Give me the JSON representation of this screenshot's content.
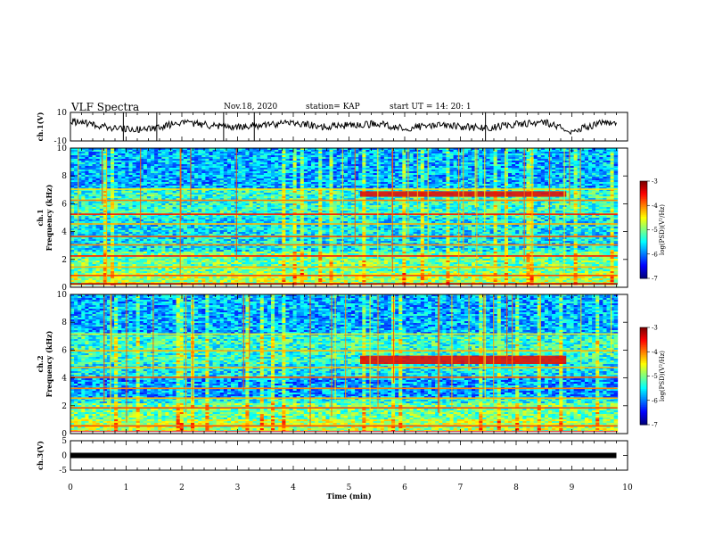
{
  "header": {
    "title": "VLF Spectra",
    "date": "Nov.18, 2020",
    "station": "station= KAP",
    "start": "start  UT =   14: 20: 1"
  },
  "chart_data": [
    {
      "type": "line",
      "panel": "ch1-waveform",
      "ylabel": "ch.1(V)",
      "ylim": [
        -10,
        10
      ],
      "ytick_labels": [
        "10",
        "-10"
      ],
      "xlim": [
        0,
        10
      ],
      "series": [
        {
          "values_description_only": false,
          "x": [
            0,
            0.5,
            1,
            1.5,
            2,
            2.5,
            3,
            3.5,
            4,
            4.5,
            5,
            5.5,
            6,
            6.5,
            7,
            7.5,
            8,
            8.5,
            9,
            9.5,
            9.8
          ],
          "y": [
            4,
            1,
            -2,
            -1,
            3,
            1,
            0,
            1,
            3,
            0,
            1,
            2,
            -1,
            1,
            0,
            -1,
            2,
            3,
            -3,
            2,
            3
          ]
        }
      ]
    },
    {
      "type": "heatmap",
      "panel": "ch1-spectrogram",
      "ylabel": "ch.1",
      "ylabel2": "Frequency (kHz)",
      "ylim": [
        0,
        10
      ],
      "ytick_labels": [
        "0",
        "2",
        "4",
        "6",
        "8",
        "10"
      ],
      "xlim": [
        0,
        10
      ],
      "colorbar": {
        "label": "log(PSD)(V²/Hz)",
        "range": [
          -7,
          -3
        ],
        "tick_labels": [
          "-3",
          "-4",
          "-5",
          "-6",
          "-7"
        ]
      }
    },
    {
      "type": "heatmap",
      "panel": "ch2-spectrogram",
      "ylabel": "ch.2",
      "ylabel2": "Frequency (kHz)",
      "ylim": [
        0,
        10
      ],
      "ytick_labels": [
        "0",
        "2",
        "4",
        "6",
        "8",
        "10"
      ],
      "xlim": [
        0,
        10
      ],
      "colorbar": {
        "label": "log(PSD)(V²/Hz)",
        "range": [
          -7,
          -3
        ],
        "tick_labels": [
          "-3",
          "-4",
          "-5",
          "-6",
          "-7"
        ]
      }
    },
    {
      "type": "line",
      "panel": "ch3-waveform",
      "ylabel": "ch.3(V)",
      "ylim": [
        -5,
        5
      ],
      "ytick_labels": [
        "5",
        "0",
        "-5"
      ],
      "xlim": [
        0,
        10
      ],
      "xlabel": "Time  (min)",
      "xtick_labels": [
        "0",
        "1",
        "2",
        "3",
        "4",
        "5",
        "6",
        "7",
        "8",
        "9",
        "10"
      ],
      "series": [
        {
          "x": [
            0,
            9.8
          ],
          "y": [
            0,
            0
          ]
        }
      ]
    }
  ]
}
